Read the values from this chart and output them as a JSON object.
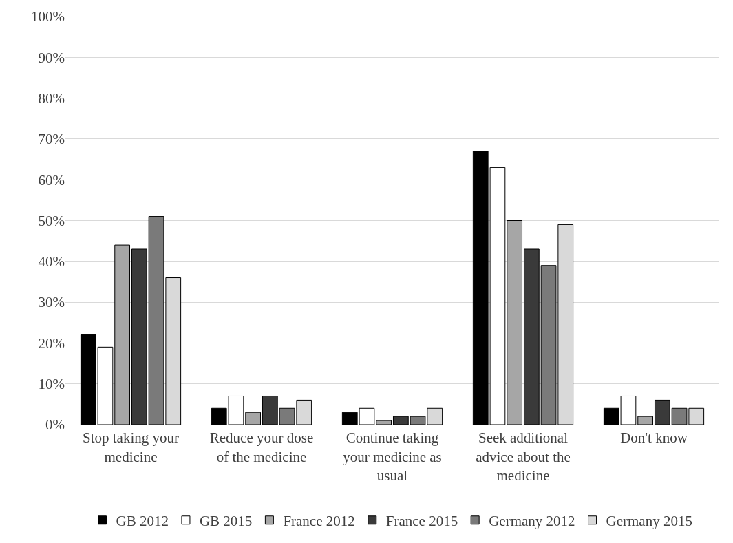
{
  "chart_data": {
    "type": "bar",
    "categories": [
      "Stop taking your medicine",
      "Reduce your dose of the medicine",
      "Continue taking your medicine as usual",
      "Seek additional advice about the medicine",
      "Don't know"
    ],
    "series": [
      {
        "name": "GB 2012",
        "color": "#000000",
        "values": [
          22,
          4,
          3,
          67,
          4
        ]
      },
      {
        "name": "GB 2015",
        "color": "#ffffff",
        "values": [
          19,
          7,
          4,
          63,
          7
        ]
      },
      {
        "name": "France 2012",
        "color": "#a6a6a6",
        "values": [
          44,
          3,
          1,
          50,
          2
        ]
      },
      {
        "name": "France 2015",
        "color": "#3a3a3a",
        "values": [
          43,
          7,
          2,
          43,
          6
        ]
      },
      {
        "name": "Germany 2012",
        "color": "#7a7a7a",
        "values": [
          51,
          4,
          2,
          39,
          4
        ]
      },
      {
        "name": "Germany 2015",
        "color": "#d9d9d9",
        "values": [
          36,
          6,
          4,
          49,
          4
        ]
      }
    ],
    "ylim": [
      0,
      100
    ],
    "yticks": [
      {
        "value": 0,
        "label": "0%"
      },
      {
        "value": 10,
        "label": "10%"
      },
      {
        "value": 20,
        "label": "20%"
      },
      {
        "value": 30,
        "label": "30%"
      },
      {
        "value": 40,
        "label": "40%"
      },
      {
        "value": 50,
        "label": "50%"
      },
      {
        "value": 60,
        "label": "60%"
      },
      {
        "value": 70,
        "label": "70%"
      },
      {
        "value": 80,
        "label": "80%"
      },
      {
        "value": 90,
        "label": "90%"
      },
      {
        "value": 100,
        "label": "100%"
      }
    ],
    "grid": "y",
    "legend": "bottom"
  }
}
